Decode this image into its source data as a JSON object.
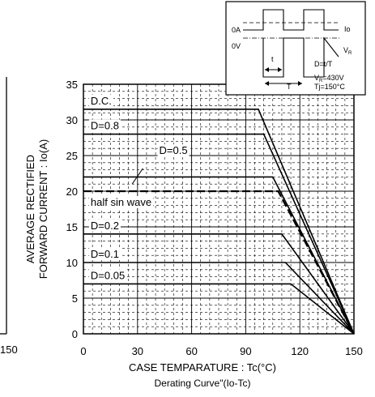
{
  "chart_data": {
    "type": "line",
    "title": "Derating Curve\"(Io-Tc)",
    "xlabel": "CASE TEMPARATURE : Tc(°C)",
    "ylabel_line1": "AVERAGE RECTIFIED",
    "ylabel_line2": "FORWARD CURRENT : Io(A)",
    "xlim": [
      0,
      150
    ],
    "ylim": [
      0,
      35
    ],
    "x_ticks": [
      0,
      30,
      60,
      90,
      120,
      150
    ],
    "y_ticks": [
      0,
      5,
      10,
      15,
      20,
      25,
      30,
      35
    ],
    "grid": true,
    "series": [
      {
        "name": "D.C.",
        "values": [
          [
            0,
            31.5
          ],
          [
            97,
            31.5
          ],
          [
            150,
            0
          ]
        ]
      },
      {
        "name": "D=0.8",
        "values": [
          [
            0,
            28
          ],
          [
            100,
            28
          ],
          [
            150,
            0
          ]
        ]
      },
      {
        "name": "D=0.5",
        "values": [
          [
            0,
            22
          ],
          [
            105,
            22
          ],
          [
            150,
            0
          ]
        ]
      },
      {
        "name": "half sin wave",
        "values": [
          [
            0,
            20
          ],
          [
            108,
            20
          ],
          [
            150,
            0
          ]
        ]
      },
      {
        "name": "D=0.2",
        "values": [
          [
            0,
            14
          ],
          [
            110,
            14
          ],
          [
            150,
            0
          ]
        ]
      },
      {
        "name": "D=0.1",
        "values": [
          [
            0,
            10
          ],
          [
            112,
            10
          ],
          [
            150,
            0
          ]
        ]
      },
      {
        "name": "D=0.05",
        "values": [
          [
            0,
            7
          ],
          [
            115,
            7
          ],
          [
            150,
            0
          ]
        ]
      }
    ],
    "left_partial_tick": "150",
    "inset": {
      "label_0A": "0A",
      "label_0V": "0V",
      "label_io": "Io",
      "label_vr": "V",
      "label_vr_sub": "R",
      "label_t": "t",
      "label_T": "T",
      "formula": "D=t/T",
      "vr_value": "V",
      "vr_value_sub": "R",
      "vr_value_rest": "=430V",
      "tj_value": "Tj=150°C"
    }
  }
}
